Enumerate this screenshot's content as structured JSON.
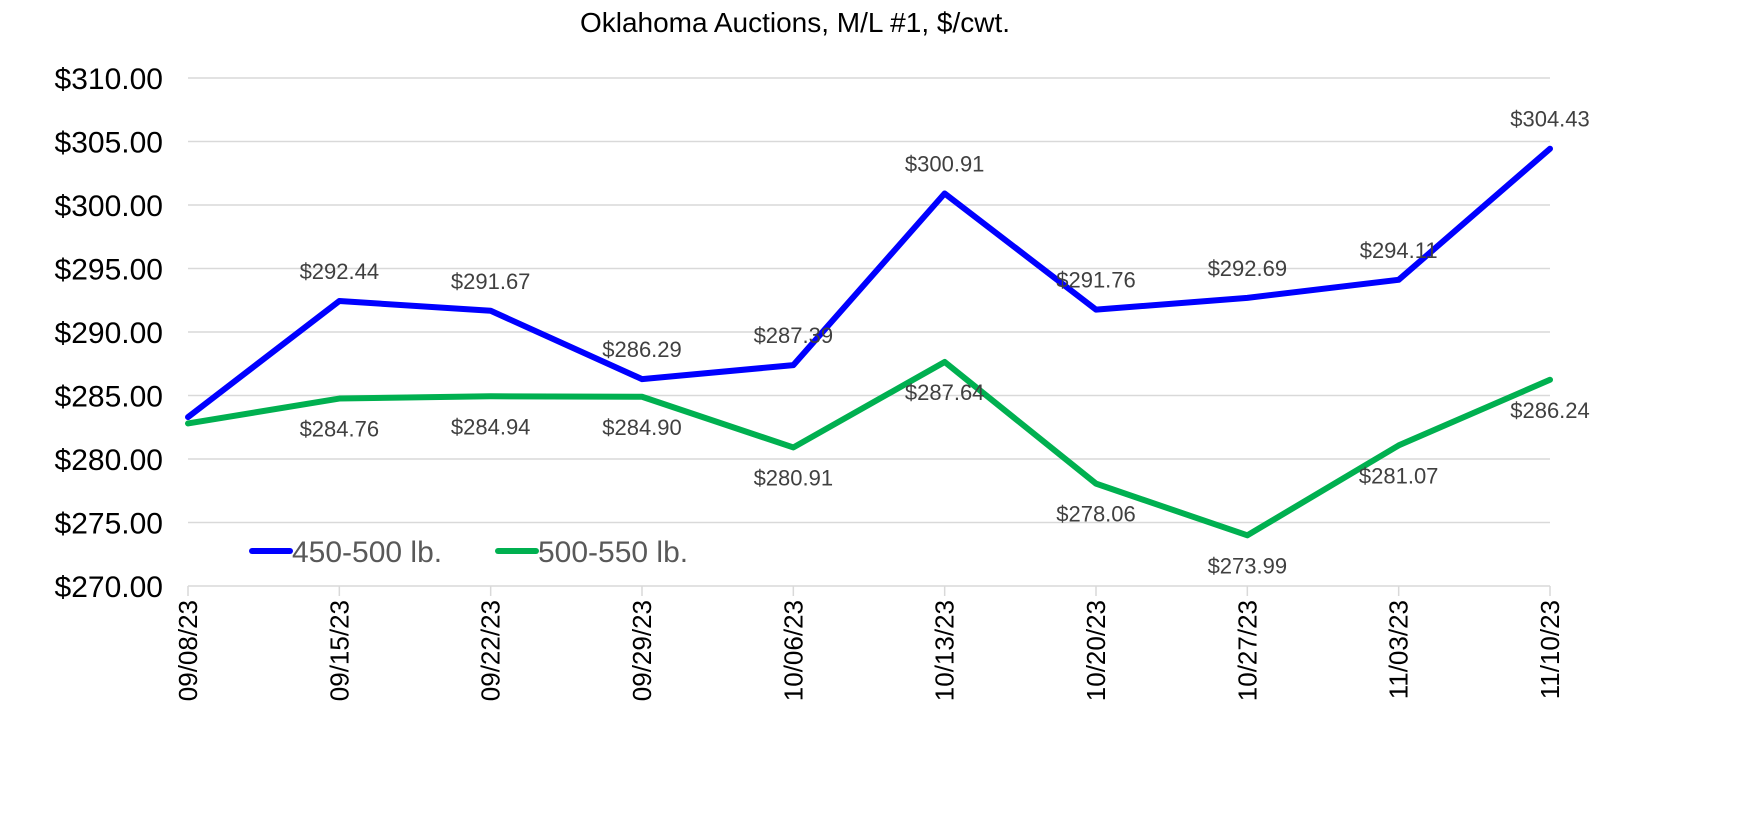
{
  "chart_data": {
    "type": "line",
    "title": "Oklahoma Auctions, M/L #1, $/cwt.",
    "xlabel": "",
    "ylabel": "",
    "categories": [
      "09/08/23",
      "09/15/23",
      "09/22/23",
      "09/29/23",
      "10/06/23",
      "10/13/23",
      "10/20/23",
      "10/27/23",
      "11/03/23",
      "11/10/23"
    ],
    "ylim": [
      270,
      310
    ],
    "yticks": [
      270,
      275,
      280,
      285,
      290,
      295,
      300,
      305,
      310
    ],
    "ytick_labels": [
      "$270.00",
      "$275.00",
      "$280.00",
      "$285.00",
      "$290.00",
      "$295.00",
      "$300.00",
      "$305.00",
      "$310.00"
    ],
    "grid": "horizontal",
    "legend_placement": "bottom-left (inside plot)",
    "series": [
      {
        "name": "450-500 lb.",
        "color": "#0000FF",
        "values": [
          283.3,
          292.44,
          291.67,
          286.29,
          287.39,
          300.91,
          291.76,
          292.69,
          294.11,
          304.43
        ],
        "data_labels": [
          "",
          "$292.44",
          "$291.67",
          "$286.29",
          "$287.39",
          "$300.91",
          "$291.76",
          "$292.69",
          "$294.11",
          "$304.43"
        ]
      },
      {
        "name": "500-550 lb.",
        "color": "#00B050",
        "values": [
          282.8,
          284.76,
          284.94,
          284.9,
          280.91,
          287.64,
          278.06,
          273.99,
          281.07,
          286.24
        ],
        "data_labels": [
          "",
          "$284.76",
          "$284.94",
          "$284.90",
          "$280.91",
          "$287.64",
          "$278.06",
          "$273.99",
          "$281.07",
          "$286.24"
        ]
      }
    ]
  }
}
